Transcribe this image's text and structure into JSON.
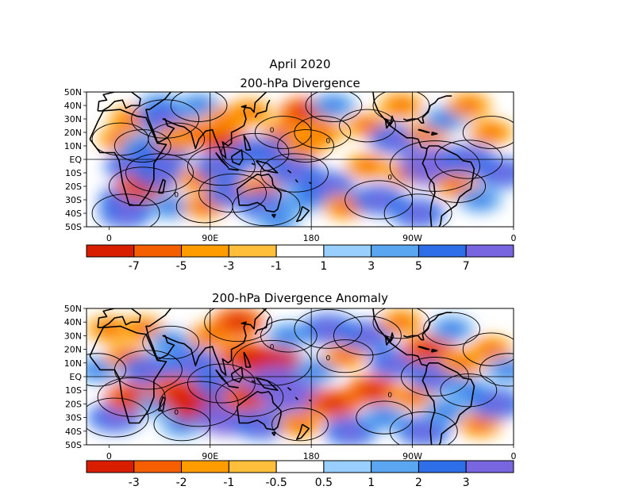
{
  "title": "April 2020",
  "chart_data": [
    {
      "type": "heatmap",
      "title": "200-hPa Divergence",
      "lon_ticks": [
        "0",
        "90E",
        "180",
        "90W",
        "0"
      ],
      "lat_ticks": [
        "50N",
        "40N",
        "30N",
        "20N",
        "10N",
        "EQ",
        "10S",
        "20S",
        "30S",
        "40S",
        "50S"
      ],
      "lon_range": [
        -20,
        360
      ],
      "lat_range": [
        -50,
        50
      ],
      "colorbar": {
        "levels": [
          "-7",
          "-5",
          "-3",
          "-1",
          "1",
          "3",
          "5",
          "7"
        ],
        "colors": [
          "#d91e00",
          "#f55f00",
          "#ff9c00",
          "#ffbf3a",
          "#ffffff",
          "#98cfff",
          "#5aa6f0",
          "#2e6ee8",
          "#7766e0"
        ]
      },
      "zero_contour_label": "0",
      "cells": [
        {
          "lon": 10,
          "lat": 15,
          "value": -2,
          "r": 1
        },
        {
          "lon": 15,
          "lat": -30,
          "value": 3,
          "r": 1
        },
        {
          "lon": 15,
          "lat": -40,
          "value": 3,
          "r": 1
        },
        {
          "lon": 20,
          "lat": 30,
          "value": -2,
          "r": 1
        },
        {
          "lon": 30,
          "lat": 10,
          "value": 2,
          "r": 1
        },
        {
          "lon": 20,
          "lat": -5,
          "value": 3,
          "r": 1
        },
        {
          "lon": 30,
          "lat": -20,
          "value": -3,
          "r": 1
        },
        {
          "lon": 45,
          "lat": 40,
          "value": 2,
          "r": 1
        },
        {
          "lon": 50,
          "lat": 30,
          "value": 3,
          "r": 1
        },
        {
          "lon": 50,
          "lat": 5,
          "value": 3,
          "r": 1
        },
        {
          "lon": 45,
          "lat": -10,
          "value": 3,
          "r": 1
        },
        {
          "lon": 55,
          "lat": -35,
          "value": 2,
          "r": 1
        },
        {
          "lon": 60,
          "lat": 15,
          "value": -2,
          "r": 1
        },
        {
          "lon": 75,
          "lat": 20,
          "value": -2,
          "r": 1
        },
        {
          "lon": 80,
          "lat": 40,
          "value": 2,
          "r": 1
        },
        {
          "lon": 80,
          "lat": -15,
          "value": -2,
          "r": 1
        },
        {
          "lon": 85,
          "lat": -35,
          "value": -2,
          "r": 1
        },
        {
          "lon": 100,
          "lat": 15,
          "value": -3,
          "r": 1
        },
        {
          "lon": 100,
          "lat": -5,
          "value": 3,
          "r": 1
        },
        {
          "lon": 105,
          "lat": 30,
          "value": -2,
          "r": 1
        },
        {
          "lon": 110,
          "lat": -25,
          "value": 3,
          "r": 1
        },
        {
          "lon": 125,
          "lat": 35,
          "value": -2,
          "r": 1
        },
        {
          "lon": 130,
          "lat": 5,
          "value": 3,
          "r": 1
        },
        {
          "lon": 135,
          "lat": -20,
          "value": -2,
          "r": 1
        },
        {
          "lon": 140,
          "lat": -35,
          "value": 3,
          "r": 1
        },
        {
          "lon": 150,
          "lat": -45,
          "value": 2,
          "r": 1
        },
        {
          "lon": 155,
          "lat": 20,
          "value": -2,
          "r": 1
        },
        {
          "lon": 150,
          "lat": 5,
          "value": 3,
          "r": 1
        },
        {
          "lon": 165,
          "lat": -10,
          "value": 3,
          "r": 1
        },
        {
          "lon": 175,
          "lat": 35,
          "value": -3,
          "r": 1
        },
        {
          "lon": 175,
          "lat": 10,
          "value": -2,
          "r": 1
        },
        {
          "lon": 175,
          "lat": -30,
          "value": 2,
          "r": 1
        },
        {
          "lon": 190,
          "lat": 20,
          "value": -2,
          "r": 1
        },
        {
          "lon": 195,
          "lat": -20,
          "value": 3,
          "r": 1
        },
        {
          "lon": 200,
          "lat": 40,
          "value": 2,
          "r": 1
        },
        {
          "lon": 210,
          "lat": -35,
          "value": -2,
          "r": 1
        },
        {
          "lon": 230,
          "lat": 25,
          "value": -2,
          "r": 1
        },
        {
          "lon": 230,
          "lat": -5,
          "value": -2,
          "r": 1
        },
        {
          "lon": 240,
          "lat": -30,
          "value": 3,
          "r": 1
        },
        {
          "lon": 255,
          "lat": 15,
          "value": 3,
          "r": 1
        },
        {
          "lon": 260,
          "lat": 40,
          "value": -2,
          "r": 1
        },
        {
          "lon": 265,
          "lat": -10,
          "value": -2,
          "r": 1
        },
        {
          "lon": 275,
          "lat": -40,
          "value": 3,
          "r": 1
        },
        {
          "lon": 285,
          "lat": 20,
          "value": -2,
          "r": 1
        },
        {
          "lon": 290,
          "lat": -5,
          "value": 5,
          "r": 1
        },
        {
          "lon": 300,
          "lat": 30,
          "value": 2,
          "r": 1
        },
        {
          "lon": 310,
          "lat": -20,
          "value": -2,
          "r": 1
        },
        {
          "lon": 320,
          "lat": 40,
          "value": -2,
          "r": 1
        },
        {
          "lon": 320,
          "lat": 0,
          "value": 3,
          "r": 1
        },
        {
          "lon": 330,
          "lat": -30,
          "value": 2,
          "r": 1
        },
        {
          "lon": 340,
          "lat": 20,
          "value": -2,
          "r": 1
        },
        {
          "lon": 350,
          "lat": -10,
          "value": 3,
          "r": 1
        }
      ]
    },
    {
      "type": "heatmap",
      "title": "200-hPa Divergence Anomaly",
      "lon_ticks": [
        "0",
        "90E",
        "180",
        "90W",
        "0"
      ],
      "lat_ticks": [
        "50N",
        "40N",
        "30N",
        "20N",
        "10N",
        "EQ",
        "10S",
        "20S",
        "30S",
        "40S",
        "50S"
      ],
      "lon_range": [
        -20,
        360
      ],
      "lat_range": [
        -50,
        50
      ],
      "colorbar": {
        "levels": [
          "-3",
          "-2",
          "-1",
          "-0.5",
          "0.5",
          "1",
          "2",
          "3"
        ],
        "colors": [
          "#d91e00",
          "#f55f00",
          "#ff9c00",
          "#ffbf3a",
          "#ffffff",
          "#98cfff",
          "#5aa6f0",
          "#2e6ee8",
          "#7766e0"
        ]
      },
      "zero_contour_label": "0",
      "cells": [
        {
          "lon": -10,
          "lat": 5,
          "value": 2,
          "r": 1
        },
        {
          "lon": 0,
          "lat": 35,
          "value": -2,
          "r": 1
        },
        {
          "lon": 5,
          "lat": -30,
          "value": 3,
          "r": 1
        },
        {
          "lon": 15,
          "lat": 15,
          "value": -2,
          "r": 1
        },
        {
          "lon": 20,
          "lat": -15,
          "value": -3,
          "r": 1
        },
        {
          "lon": 30,
          "lat": 35,
          "value": -2,
          "r": 1
        },
        {
          "lon": 35,
          "lat": 5,
          "value": 3,
          "r": 1
        },
        {
          "lon": 45,
          "lat": -20,
          "value": 2,
          "r": 1
        },
        {
          "lon": 55,
          "lat": 25,
          "value": 2,
          "r": 1
        },
        {
          "lon": 60,
          "lat": -10,
          "value": -3,
          "r": 1
        },
        {
          "lon": 65,
          "lat": -35,
          "value": 2,
          "r": 1
        },
        {
          "lon": 75,
          "lat": 10,
          "value": 3,
          "r": 1
        },
        {
          "lon": 80,
          "lat": -20,
          "value": -4,
          "r": 1
        },
        {
          "lon": 90,
          "lat": 30,
          "value": -2,
          "r": 1
        },
        {
          "lon": 100,
          "lat": -5,
          "value": 3,
          "r": 1
        },
        {
          "lon": 105,
          "lat": -30,
          "value": 4,
          "r": 1
        },
        {
          "lon": 115,
          "lat": 40,
          "value": -3,
          "r": 1
        },
        {
          "lon": 120,
          "lat": 15,
          "value": -3,
          "r": 1
        },
        {
          "lon": 125,
          "lat": -15,
          "value": -3,
          "r": 1
        },
        {
          "lon": 135,
          "lat": -35,
          "value": 3,
          "r": 1
        },
        {
          "lon": 145,
          "lat": 10,
          "value": -4,
          "r": 1
        },
        {
          "lon": 150,
          "lat": -5,
          "value": 4,
          "r": 1
        },
        {
          "lon": 160,
          "lat": 30,
          "value": 2,
          "r": 1
        },
        {
          "lon": 165,
          "lat": -15,
          "value": 4,
          "r": 1
        },
        {
          "lon": 170,
          "lat": -35,
          "value": -2,
          "r": 1
        },
        {
          "lon": 185,
          "lat": 5,
          "value": 2,
          "r": 1
        },
        {
          "lon": 195,
          "lat": 35,
          "value": 3,
          "r": 1
        },
        {
          "lon": 200,
          "lat": -20,
          "value": -3,
          "r": 1
        },
        {
          "lon": 210,
          "lat": 15,
          "value": -2,
          "r": 1
        },
        {
          "lon": 215,
          "lat": -40,
          "value": 3,
          "r": 1
        },
        {
          "lon": 230,
          "lat": 30,
          "value": 3,
          "r": 1
        },
        {
          "lon": 235,
          "lat": -10,
          "value": -3,
          "r": 1
        },
        {
          "lon": 245,
          "lat": -30,
          "value": 2,
          "r": 1
        },
        {
          "lon": 255,
          "lat": 10,
          "value": 3,
          "r": 1
        },
        {
          "lon": 260,
          "lat": 40,
          "value": -2,
          "r": 1
        },
        {
          "lon": 270,
          "lat": -15,
          "value": -2,
          "r": 1
        },
        {
          "lon": 280,
          "lat": -40,
          "value": 3,
          "r": 1
        },
        {
          "lon": 285,
          "lat": 20,
          "value": -3,
          "r": 1
        },
        {
          "lon": 290,
          "lat": 0,
          "value": 3,
          "r": 1
        },
        {
          "lon": 300,
          "lat": -25,
          "value": 2,
          "r": 1
        },
        {
          "lon": 305,
          "lat": 35,
          "value": 2,
          "r": 1
        },
        {
          "lon": 315,
          "lat": 10,
          "value": -2,
          "r": 1
        },
        {
          "lon": 320,
          "lat": -10,
          "value": 2,
          "r": 1
        },
        {
          "lon": 330,
          "lat": -35,
          "value": -2,
          "r": 1
        },
        {
          "lon": 340,
          "lat": 20,
          "value": -2,
          "r": 1
        },
        {
          "lon": 345,
          "lat": -20,
          "value": 3,
          "r": 1
        },
        {
          "lon": 355,
          "lat": 5,
          "value": 2,
          "r": 1
        }
      ]
    }
  ]
}
